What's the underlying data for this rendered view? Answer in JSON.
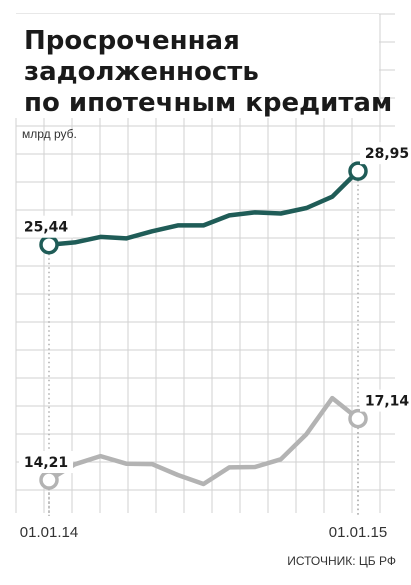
{
  "chart_data": {
    "type": "line",
    "title_lines": [
      "Просроченная",
      "задолженность",
      "по ипотечным кредитам"
    ],
    "unit_label": "млрд руб.",
    "x_tick_labels": [
      "01.01.14",
      "01.01.15"
    ],
    "source": "ИСТОЧНИК: ЦБ РФ",
    "grid": true,
    "ylim": [
      11.3,
      31.2
    ],
    "x": [
      0,
      1,
      2,
      3,
      4,
      5,
      6,
      7,
      8,
      9,
      10,
      11,
      12
    ],
    "series": [
      {
        "color": "#1f5c57",
        "values": [
          25.44,
          25.55,
          25.81,
          25.74,
          26.08,
          26.36,
          26.36,
          26.84,
          26.98,
          26.93,
          27.19,
          27.73,
          28.95
        ],
        "labels": [
          {
            "index": 0,
            "text": "25,44"
          },
          {
            "index": 12,
            "text": "28,95"
          }
        ]
      },
      {
        "color": "#b3b3b3",
        "values": [
          14.21,
          14.96,
          15.35,
          14.99,
          14.97,
          14.45,
          14.02,
          14.81,
          14.83,
          15.2,
          16.4,
          18.12,
          17.14
        ],
        "labels": [
          {
            "index": 0,
            "text": "14,21"
          },
          {
            "index": 12,
            "text": "17,14"
          }
        ]
      }
    ],
    "colors": {
      "grid": "#d2d2d2",
      "marker_fill": "#ffffff",
      "dotted_line": "#9a9a9a",
      "text": "#1a1a1a"
    }
  }
}
